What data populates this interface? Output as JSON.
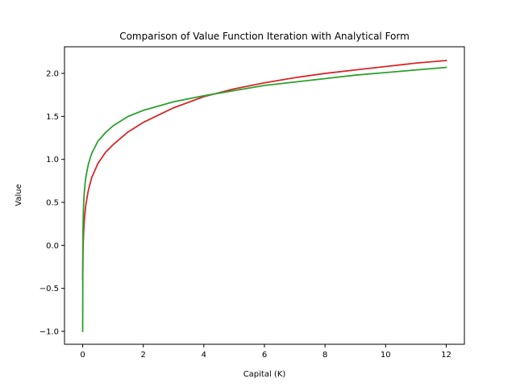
{
  "chart_data": {
    "type": "line",
    "title": "Comparison of Value Function Iteration with Analytical Form",
    "xlabel": "Capital (K)",
    "ylabel": "Value",
    "xlim": [
      -0.6,
      12.6
    ],
    "ylim": [
      -1.15,
      2.31
    ],
    "xticks": [
      0,
      2,
      4,
      6,
      8,
      10,
      12
    ],
    "xtick_labels": [
      "0",
      "2",
      "4",
      "6",
      "8",
      "10",
      "12"
    ],
    "yticks": [
      -1.0,
      -0.5,
      0.0,
      0.5,
      1.0,
      1.5,
      2.0
    ],
    "ytick_labels": [
      "−1.0",
      "−0.5",
      "0.0",
      "0.5",
      "1.0",
      "1.5",
      "2.0"
    ],
    "grid": false,
    "legend": "none",
    "series": [
      {
        "color": "#d62728",
        "x": [
          0.0,
          0.01,
          0.02,
          0.03,
          0.05,
          0.08,
          0.1,
          0.15,
          0.2,
          0.3,
          0.5,
          0.75,
          1.0,
          1.5,
          2.0,
          3.0,
          4.0,
          5.0,
          6.0,
          7.0,
          8.0,
          9.0,
          10.0,
          11.0,
          12.0
        ],
        "values": [
          -0.4,
          -0.08,
          0.05,
          0.14,
          0.27,
          0.39,
          0.46,
          0.57,
          0.66,
          0.79,
          0.95,
          1.08,
          1.17,
          1.32,
          1.43,
          1.6,
          1.73,
          1.82,
          1.89,
          1.95,
          2.0,
          2.04,
          2.08,
          2.12,
          2.15
        ]
      },
      {
        "color": "#2ca02c",
        "x": [
          0.0,
          0.005,
          0.01,
          0.02,
          0.03,
          0.05,
          0.08,
          0.1,
          0.15,
          0.2,
          0.3,
          0.5,
          0.75,
          1.0,
          1.5,
          2.0,
          3.0,
          4.0,
          5.0,
          6.0,
          7.0,
          8.0,
          9.0,
          10.0,
          11.0,
          12.0
        ],
        "values": [
          -1.0,
          -0.2,
          0.15,
          0.35,
          0.47,
          0.6,
          0.72,
          0.78,
          0.88,
          0.96,
          1.07,
          1.21,
          1.31,
          1.39,
          1.5,
          1.57,
          1.67,
          1.74,
          1.8,
          1.86,
          1.9,
          1.94,
          1.98,
          2.01,
          2.04,
          2.07
        ]
      }
    ]
  }
}
